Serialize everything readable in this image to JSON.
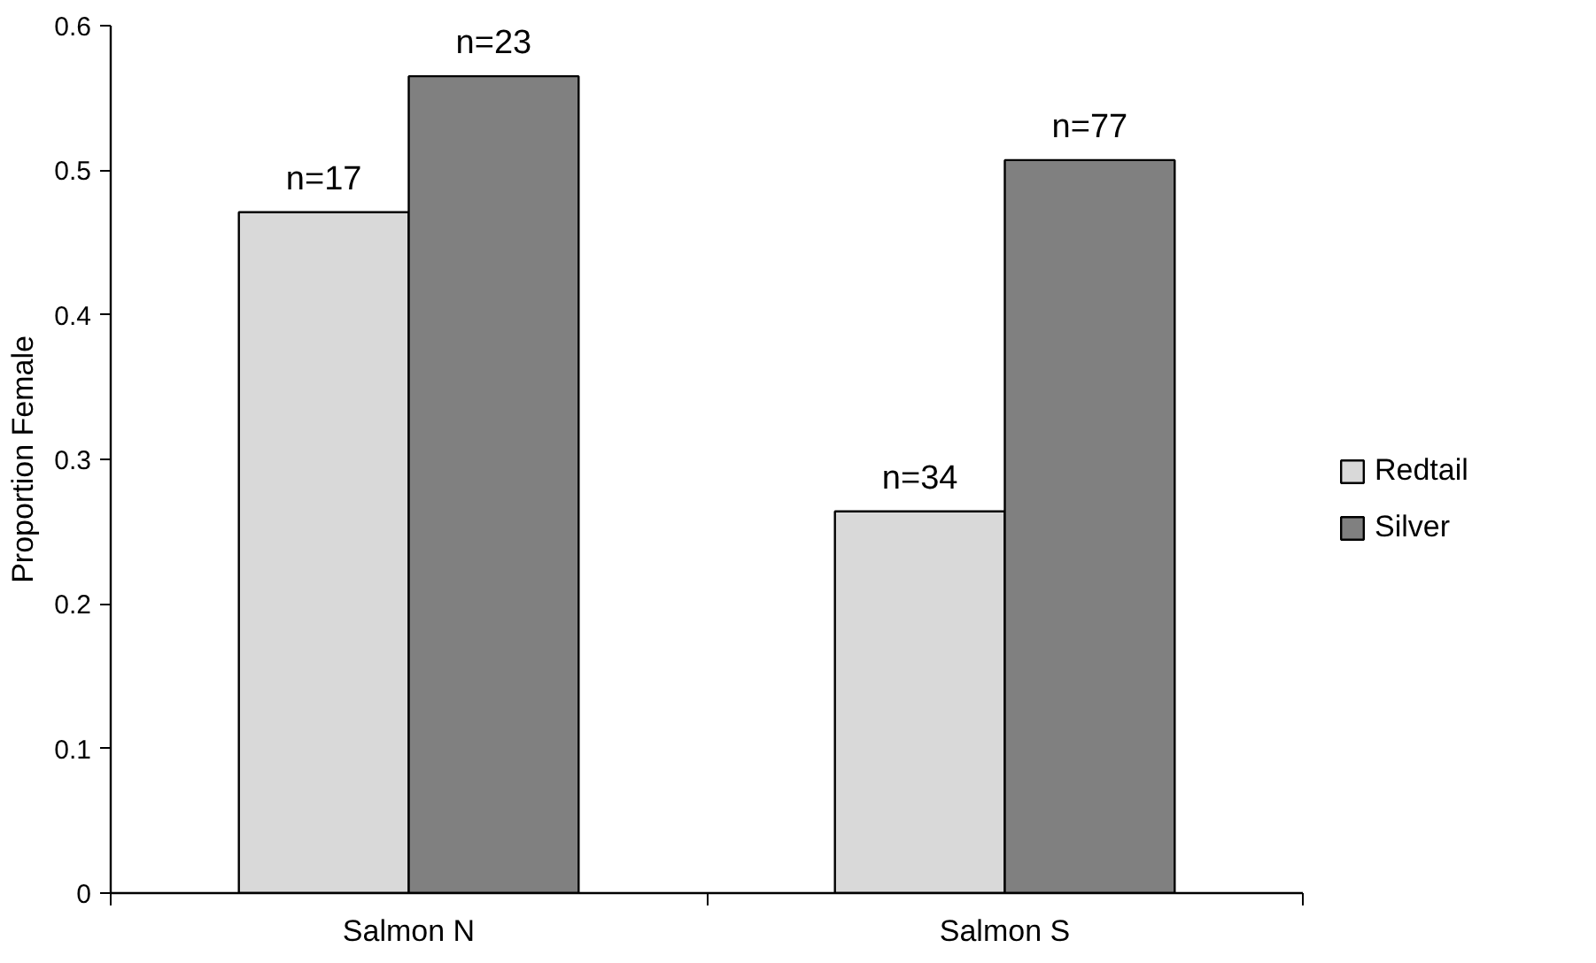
{
  "chart_data": {
    "type": "bar",
    "ylabel": "Proportion Female",
    "categories": [
      "Salmon N",
      "Salmon S"
    ],
    "series": [
      {
        "name": "Redtail",
        "color": "#d9d9d9",
        "values": [
          0.471,
          0.264
        ]
      },
      {
        "name": "Silver",
        "color": "#808080",
        "values": [
          0.565,
          0.507
        ]
      }
    ],
    "annotations": [
      {
        "text": "n=17",
        "x": "Salmon N",
        "y": 0.471
      },
      {
        "text": "n=23",
        "x": "Salmon N",
        "y": 0.565
      },
      {
        "text": "n=34",
        "x": "Salmon S",
        "y": 0.264
      },
      {
        "text": "n=77",
        "x": "Salmon S",
        "y": 0.507
      }
    ],
    "ylim": [
      0,
      0.6
    ],
    "yticks": [
      0,
      0.1,
      0.2,
      0.3,
      0.4,
      0.5,
      0.6
    ],
    "grid": false,
    "legend": "right"
  }
}
